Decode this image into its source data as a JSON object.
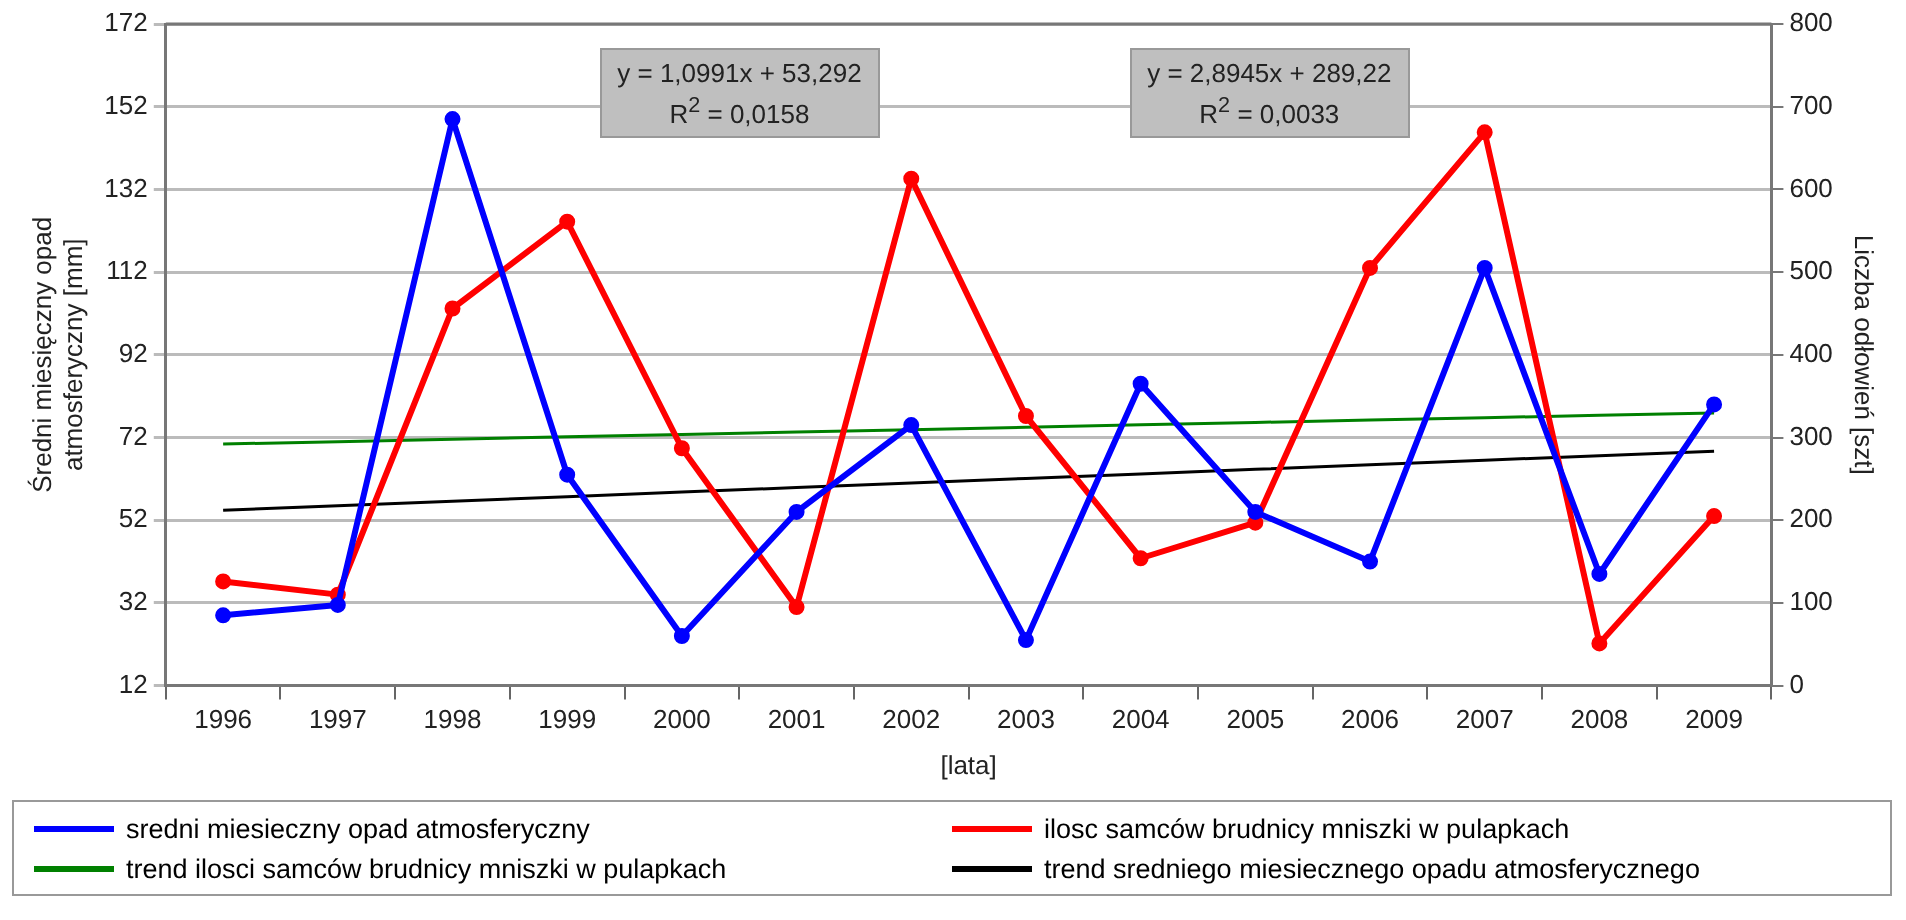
{
  "chart_data": {
    "type": "line",
    "xlabel": "[lata]",
    "ylabel": "Średni miesięczny opad atmosferyczny [mm]",
    "y2label": "Liczba odłowień [szt]",
    "categories": [
      "1996",
      "1997",
      "1998",
      "1999",
      "2000",
      "2001",
      "2002",
      "2003",
      "2004",
      "2005",
      "2006",
      "2007",
      "2008",
      "2009"
    ],
    "series": [
      {
        "name": "sredni miesieczny opad atmosferyczny",
        "color": "#0000ff",
        "marker": "circle",
        "values": [
          29,
          31.5,
          149,
          63,
          24,
          54,
          75,
          23,
          85,
          54,
          42,
          113,
          39,
          80
        ]
      },
      {
        "name": "ilosc samców brudnicy mniszki w pulapkach",
        "color": "#ff0000",
        "marker": "circle",
        "axis": "y2",
        "values": [
          126,
          110,
          456,
          561,
          287,
          95,
          613,
          326,
          154,
          197,
          505,
          669,
          51,
          205
        ]
      },
      {
        "name": "trend ilosci samców brudnicy mniszki w pulapkach",
        "color": "#008000",
        "marker": "none",
        "axis": "y2",
        "values": [
          292.1,
          295,
          297.9,
          300.8,
          303.7,
          306.6,
          309.5,
          312.4,
          315.3,
          318.2,
          321.1,
          323.9,
          326.8,
          329.7
        ]
      },
      {
        "name": "trend sredniego miesiecznego opadu atmosferycznego",
        "color": "#000000",
        "marker": "none",
        "values": [
          54.4,
          55.5,
          56.6,
          57.7,
          58.8,
          59.9,
          61,
          62.1,
          63.2,
          64.3,
          65.4,
          66.5,
          67.6,
          68.7
        ]
      }
    ],
    "ylim": [
      12,
      172
    ],
    "yticks": [
      12,
      32,
      52,
      72,
      92,
      112,
      132,
      152,
      172
    ],
    "y2lim": [
      0,
      800
    ],
    "y2ticks": [
      0,
      100,
      200,
      300,
      400,
      500,
      600,
      700,
      800
    ],
    "grid": "y",
    "legend": "bottom",
    "line_style": "solid",
    "annotations": [
      "y = 1,0991x + 53,292\nR$^{2}$ = 0,0158",
      "y = 2,8945x + 289,22\nR$^{2}$ = 0,0033"
    ]
  }
}
